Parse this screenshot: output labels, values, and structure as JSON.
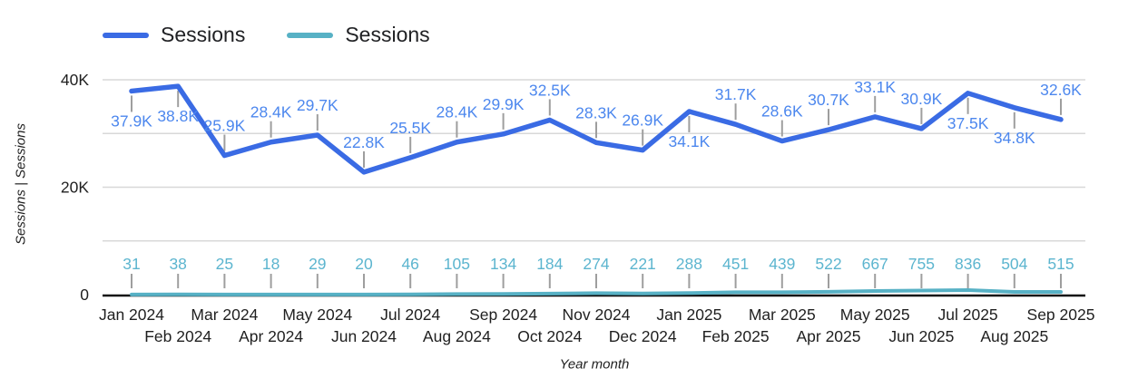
{
  "legend": {
    "items": [
      {
        "label": "Sessions",
        "color": "#3a6be4"
      },
      {
        "label": "Sessions",
        "color": "#57b1c5"
      }
    ]
  },
  "chart_data": {
    "type": "line",
    "title": "",
    "xlabel": "Year month",
    "ylabel": "Sessions | Sessions",
    "ylim": [
      0,
      40000
    ],
    "grid": true,
    "legend_position": "top-left",
    "grid_color": "#d8d8d8",
    "axis_color": "#111111",
    "leader_color": "#9e9e9e",
    "categories": [
      "Jan 2024",
      "Feb 2024",
      "Mar 2024",
      "Apr 2024",
      "May 2024",
      "Jun 2024",
      "Jul 2024",
      "Aug 2024",
      "Sep 2024",
      "Oct 2024",
      "Nov 2024",
      "Dec 2024",
      "Jan 2025",
      "Feb 2025",
      "Mar 2025",
      "Apr 2025",
      "May 2025",
      "Jun 2025",
      "Jul 2025",
      "Aug 2025",
      "Sep 2025"
    ],
    "y_gridlines": [
      10000,
      20000,
      30000,
      40000
    ],
    "y_ticks": [
      {
        "value": 0,
        "label": "0"
      },
      {
        "value": 20000,
        "label": "20K"
      },
      {
        "value": 40000,
        "label": "40K"
      }
    ],
    "series": [
      {
        "name": "Sessions",
        "color": "#3a6be4",
        "label_color": "#4c87ee",
        "stroke_width": 5.5,
        "label_mode": "offset",
        "values": [
          37900,
          38800,
          25900,
          28400,
          29700,
          22800,
          25500,
          28400,
          29900,
          32500,
          28300,
          26900,
          34100,
          31700,
          28600,
          30700,
          33100,
          30900,
          37500,
          34800,
          32600
        ],
        "labels": [
          "37.9K",
          "38.8K",
          "25.9K",
          "28.4K",
          "29.7K",
          "22.8K",
          "25.5K",
          "28.4K",
          "29.9K",
          "32.5K",
          "28.3K",
          "26.9K",
          "34.1K",
          "31.7K",
          "28.6K",
          "30.7K",
          "33.1K",
          "30.9K",
          "37.5K",
          "34.8K",
          "32.6K"
        ],
        "label_side": [
          "below",
          "below",
          "above",
          "above",
          "above",
          "above",
          "above",
          "above",
          "above",
          "above",
          "above",
          "above",
          "below",
          "above",
          "above",
          "above",
          "above",
          "above",
          "below",
          "below",
          "above"
        ]
      },
      {
        "name": "Sessions",
        "color": "#57b1c5",
        "label_color": "#5cb5cf",
        "stroke_width": 4,
        "label_mode": "fixed",
        "values": [
          31,
          38,
          25,
          18,
          29,
          20,
          46,
          105,
          134,
          184,
          274,
          221,
          288,
          451,
          439,
          522,
          667,
          755,
          836,
          504,
          515
        ],
        "labels": [
          "31",
          "38",
          "25",
          "18",
          "29",
          "20",
          "46",
          "105",
          "134",
          "184",
          "274",
          "221",
          "288",
          "451",
          "439",
          "522",
          "667",
          "755",
          "836",
          "504",
          "515"
        ]
      }
    ]
  }
}
